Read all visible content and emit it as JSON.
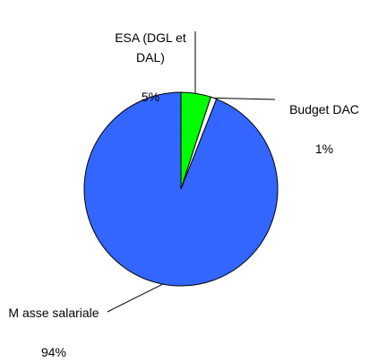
{
  "chart_data": {
    "type": "pie",
    "slices": [
      {
        "label": "ESA (DGL et\nDAL)",
        "percent_label": "5%",
        "value": 5,
        "color": "#00ff00"
      },
      {
        "label": "Budget DAC",
        "percent_label": "1%",
        "value": 1,
        "color": "#ffffff"
      },
      {
        "label": "M asse salariale",
        "percent_label": "94%",
        "value": 94,
        "color": "#3366ff"
      }
    ],
    "start_angle_deg": 0,
    "direction": "clockwise"
  }
}
